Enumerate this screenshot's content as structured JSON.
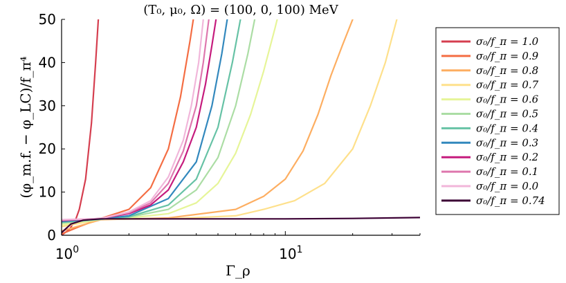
{
  "chart_data": {
    "type": "line",
    "title": "(T₀, μ₀, Ω) = (100, 0, 100) MeV",
    "xlabel": "Γ_ρ",
    "ylabel": "(φ_m.f. − φ_LC)/f_π⁴",
    "xscale": "log",
    "xlim": [
      1,
      40
    ],
    "ylim": [
      0,
      50
    ],
    "xticks": [
      {
        "value": 1,
        "label": "10",
        "exp": "0"
      },
      {
        "value": 10,
        "label": "10",
        "exp": "1"
      }
    ],
    "yticks": [
      0,
      10,
      20,
      30,
      40,
      50
    ],
    "grid": false,
    "legend_position": "right",
    "series": [
      {
        "name": "σ₀/f_π = 1.0",
        "color": "#d53e4f",
        "points": [
          [
            1.0,
            0.0
          ],
          [
            1.08,
            1.3
          ],
          [
            1.15,
            3.3
          ],
          [
            1.2,
            6.0
          ],
          [
            1.28,
            13.0
          ],
          [
            1.36,
            26.0
          ],
          [
            1.42,
            40.0
          ],
          [
            1.46,
            50.0
          ]
        ]
      },
      {
        "name": "σ₀/f_π = 0.9",
        "color": "#f46d43",
        "points": [
          [
            1.0,
            0.3
          ],
          [
            1.2,
            2.0
          ],
          [
            1.5,
            3.9
          ],
          [
            2.0,
            6.0
          ],
          [
            2.5,
            11.0
          ],
          [
            3.0,
            20.0
          ],
          [
            3.4,
            32.0
          ],
          [
            3.75,
            45.0
          ],
          [
            3.88,
            50.0
          ]
        ]
      },
      {
        "name": "σ₀/f_π = 0.8",
        "color": "#fdae61",
        "points": [
          [
            1.0,
            1.0
          ],
          [
            1.5,
            3.6
          ],
          [
            3.0,
            4.0
          ],
          [
            6.0,
            6.0
          ],
          [
            8.0,
            9.0
          ],
          [
            10.0,
            13.0
          ],
          [
            12.0,
            19.5
          ],
          [
            14.0,
            28.0
          ],
          [
            16.0,
            37.0
          ],
          [
            18.0,
            44.0
          ],
          [
            20.0,
            50.0
          ]
        ]
      },
      {
        "name": "σ₀/f_π = 0.7",
        "color": "#fee08b",
        "points": [
          [
            1.0,
            2.0
          ],
          [
            1.5,
            3.7
          ],
          [
            3.0,
            3.8
          ],
          [
            6.0,
            4.5
          ],
          [
            8.0,
            6.0
          ],
          [
            11.0,
            8.0
          ],
          [
            15.0,
            12.0
          ],
          [
            20.0,
            20.0
          ],
          [
            24.0,
            30.0
          ],
          [
            28.0,
            40.0
          ],
          [
            31.5,
            50.0
          ]
        ]
      },
      {
        "name": "σ₀/f_π = 0.6",
        "color": "#e6f598",
        "points": [
          [
            1.0,
            2.4
          ],
          [
            1.5,
            3.7
          ],
          [
            2.0,
            4.0
          ],
          [
            3.0,
            5.0
          ],
          [
            4.0,
            7.5
          ],
          [
            5.0,
            12.0
          ],
          [
            6.0,
            19.0
          ],
          [
            7.0,
            28.0
          ],
          [
            8.0,
            38.0
          ],
          [
            9.0,
            48.0
          ],
          [
            9.2,
            50.0
          ]
        ]
      },
      {
        "name": "σ₀/f_π = 0.5",
        "color": "#abdda4",
        "points": [
          [
            1.0,
            2.8
          ],
          [
            1.5,
            3.7
          ],
          [
            2.0,
            4.2
          ],
          [
            3.0,
            6.0
          ],
          [
            4.0,
            10.5
          ],
          [
            5.0,
            18.0
          ],
          [
            6.0,
            30.0
          ],
          [
            6.8,
            42.0
          ],
          [
            7.3,
            50.0
          ]
        ]
      },
      {
        "name": "σ₀/f_π = 0.4",
        "color": "#66c2a5",
        "points": [
          [
            1.0,
            3.0
          ],
          [
            1.5,
            3.7
          ],
          [
            2.0,
            4.3
          ],
          [
            3.0,
            7.0
          ],
          [
            4.0,
            13.0
          ],
          [
            5.0,
            25.0
          ],
          [
            5.8,
            40.0
          ],
          [
            6.3,
            50.0
          ]
        ]
      },
      {
        "name": "σ₀/f_π = 0.3",
        "color": "#3288bd",
        "points": [
          [
            1.0,
            3.2
          ],
          [
            1.5,
            3.8
          ],
          [
            2.0,
            4.5
          ],
          [
            3.0,
            8.5
          ],
          [
            4.0,
            17.0
          ],
          [
            4.7,
            30.0
          ],
          [
            5.2,
            42.0
          ],
          [
            5.5,
            50.0
          ]
        ]
      },
      {
        "name": "σ₀/f_π = 0.2",
        "color": "#c51b7d",
        "points": [
          [
            1.0,
            3.4
          ],
          [
            1.5,
            3.9
          ],
          [
            2.0,
            5.0
          ],
          [
            2.5,
            7.0
          ],
          [
            3.0,
            10.5
          ],
          [
            3.5,
            17.0
          ],
          [
            4.0,
            25.0
          ],
          [
            4.4,
            35.0
          ],
          [
            4.7,
            44.0
          ],
          [
            4.9,
            50.0
          ]
        ]
      },
      {
        "name": "σ₀/f_π = 0.1",
        "color": "#de77ae",
        "points": [
          [
            1.0,
            3.5
          ],
          [
            1.5,
            3.9
          ],
          [
            2.0,
            5.2
          ],
          [
            2.5,
            7.5
          ],
          [
            3.0,
            12.0
          ],
          [
            3.5,
            19.5
          ],
          [
            4.0,
            30.0
          ],
          [
            4.3,
            40.0
          ],
          [
            4.55,
            50.0
          ]
        ]
      },
      {
        "name": "σ₀/f_π = 0.0",
        "color": "#f1b6da",
        "points": [
          [
            1.0,
            3.6
          ],
          [
            1.5,
            3.9
          ],
          [
            2.0,
            5.4
          ],
          [
            2.5,
            8.0
          ],
          [
            3.0,
            13.5
          ],
          [
            3.5,
            22.0
          ],
          [
            3.8,
            30.0
          ],
          [
            4.1,
            40.0
          ],
          [
            4.3,
            50.0
          ]
        ]
      },
      {
        "name": "σ₀/f_π = 0.74",
        "color": "#3b0034",
        "points": [
          [
            1.0,
            0.6
          ],
          [
            1.1,
            2.6
          ],
          [
            1.25,
            3.5
          ],
          [
            1.5,
            3.8
          ],
          [
            2.0,
            3.8
          ],
          [
            5.0,
            3.8
          ],
          [
            10.0,
            3.8
          ],
          [
            20.0,
            3.9
          ],
          [
            40.0,
            4.1
          ]
        ]
      }
    ]
  }
}
